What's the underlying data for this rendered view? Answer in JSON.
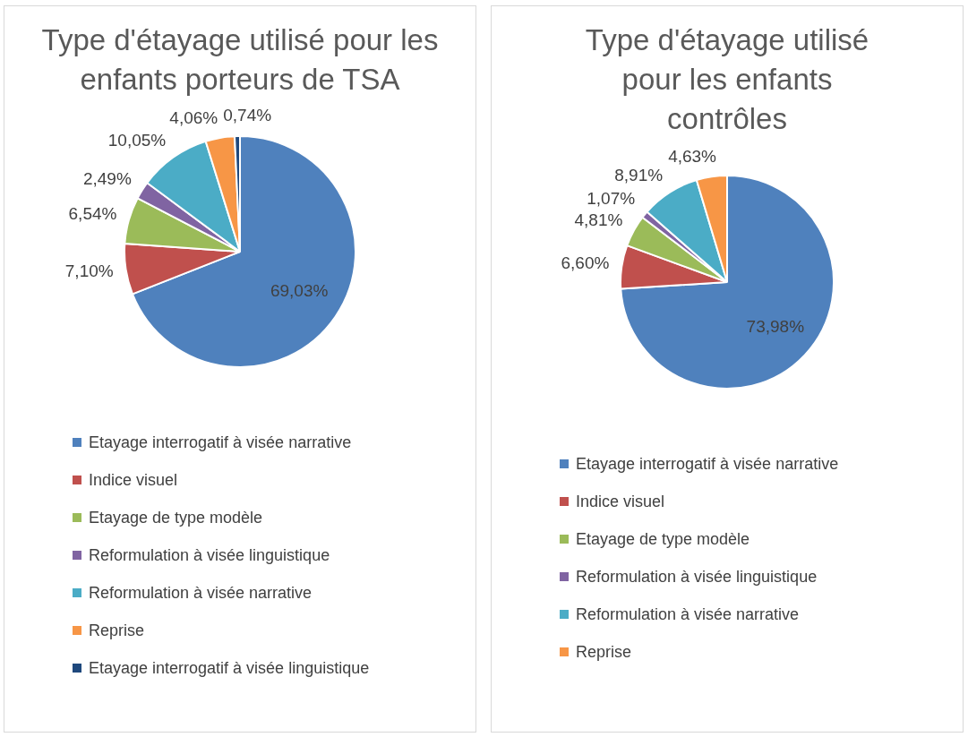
{
  "chart_data": [
    {
      "type": "pie",
      "title": "Type d'étayage utilisé pour les enfants porteurs de TSA",
      "categories": [
        "Etayage interrogatif à visée narrative",
        "Indice visuel",
        "Etayage de type modèle",
        "Reformulation à visée linguistique",
        "Reformulation à visée narrative",
        "Reprise",
        "Etayage interrogatif à visée linguistique"
      ],
      "values": [
        69.03,
        7.1,
        6.54,
        2.49,
        10.05,
        4.06,
        0.74
      ],
      "value_labels": [
        "69,03%",
        "7,10%",
        "6,54%",
        "2,49%",
        "10,05%",
        "4,06%",
        "0,74%"
      ],
      "colors": [
        "#4f81bd",
        "#c0504d",
        "#9bbb59",
        "#8064a2",
        "#4bacc6",
        "#f79646",
        "#1f497d"
      ],
      "legend": "bottom"
    },
    {
      "type": "pie",
      "title": "Type d'étayage utilisé pour les enfants contrôles",
      "categories": [
        "Etayage interrogatif à visée narrative",
        "Indice visuel",
        "Etayage de type modèle",
        "Reformulation à visée linguistique",
        "Reformulation à visée narrative",
        "Reprise"
      ],
      "values": [
        73.98,
        6.6,
        4.81,
        1.07,
        8.91,
        4.63
      ],
      "value_labels": [
        "73,98%",
        "6,60%",
        "4,81%",
        "1,07%",
        "8,91%",
        "4,63%"
      ],
      "colors": [
        "#4f81bd",
        "#c0504d",
        "#9bbb59",
        "#8064a2",
        "#4bacc6",
        "#f79646"
      ],
      "legend": "bottom"
    }
  ]
}
